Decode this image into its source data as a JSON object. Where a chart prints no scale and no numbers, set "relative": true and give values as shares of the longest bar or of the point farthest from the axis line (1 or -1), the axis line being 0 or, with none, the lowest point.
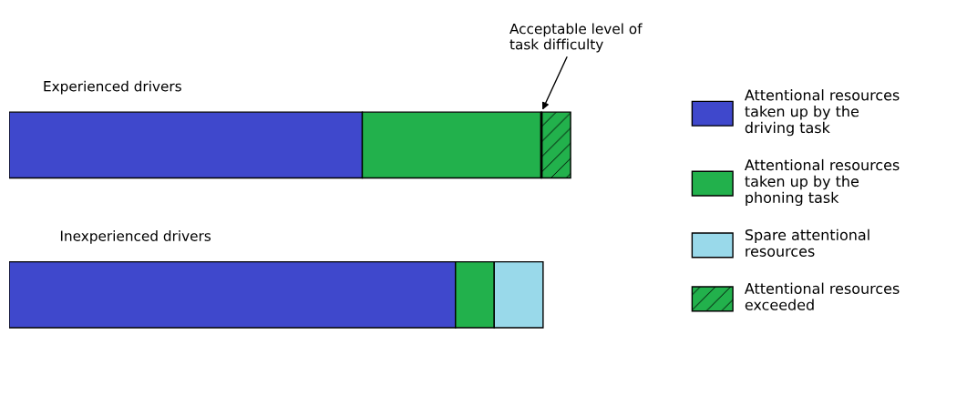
{
  "chart_data": {
    "type": "bar",
    "orientation": "horizontal",
    "stacked": true,
    "relative": true,
    "categories": [
      "Experienced drivers",
      "Inexperienced drivers"
    ],
    "series": [
      {
        "name": "Attentional resources taken up by the driving task",
        "color": "#3f48cc",
        "values": [
          0.629,
          0.795
        ]
      },
      {
        "name": "Attentional resources taken up by the phoning task",
        "color": "#22b14c",
        "values": [
          0.319,
          0.069
        ]
      },
      {
        "name": "Spare attentional resources",
        "color": "#99d9ea",
        "values": [
          0,
          0.087
        ]
      },
      {
        "name": "Attentional resources exceeded",
        "color": "#22b14c",
        "values": [
          0.052,
          0
        ]
      }
    ],
    "ref_lines": [
      {
        "axis": "x",
        "value": 0.948,
        "label": "Acceptable level of\ntask difficulty",
        "color": "#000000"
      }
    ],
    "legend": "right"
  }
}
